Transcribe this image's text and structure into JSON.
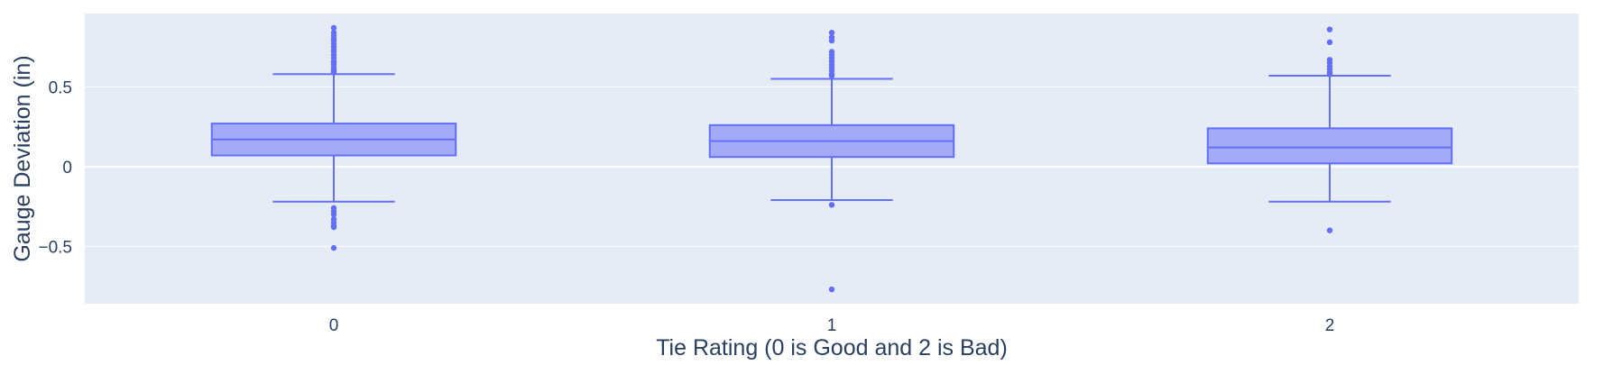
{
  "chart_data": {
    "type": "box",
    "title": "",
    "xlabel": "Tie Rating (0 is Good and 2 is Bad)",
    "ylabel": "Gauge Deviation (in)",
    "categories": [
      "0",
      "1",
      "2"
    ],
    "ylim": [
      -0.86,
      0.96
    ],
    "yticks": [
      {
        "value": 0.5,
        "label": "0.5"
      },
      {
        "value": 0,
        "label": "0"
      },
      {
        "value": -0.5,
        "label": "−0.5"
      }
    ],
    "grid": true,
    "legend": "none",
    "series": [
      {
        "boxes": [
          {
            "category": "0",
            "q1": 0.07,
            "median": 0.17,
            "q3": 0.27,
            "lower_fence": -0.22,
            "upper_fence": 0.58,
            "outliers": [
              0.87,
              0.84,
              0.82,
              0.8,
              0.79,
              0.77,
              0.75,
              0.73,
              0.72,
              0.7,
              0.68,
              0.66,
              0.65,
              0.64,
              0.62,
              0.61,
              0.6,
              0.59,
              -0.26,
              -0.28,
              -0.3,
              -0.33,
              -0.35,
              -0.37,
              -0.38,
              -0.51
            ]
          },
          {
            "category": "1",
            "q1": 0.06,
            "median": 0.16,
            "q3": 0.26,
            "lower_fence": -0.21,
            "upper_fence": 0.55,
            "outliers": [
              0.84,
              0.81,
              0.79,
              0.72,
              0.7,
              0.68,
              0.66,
              0.64,
              0.62,
              0.6,
              0.58,
              0.57,
              -0.24,
              -0.77
            ]
          },
          {
            "category": "2",
            "q1": 0.02,
            "median": 0.12,
            "q3": 0.24,
            "lower_fence": -0.22,
            "upper_fence": 0.57,
            "outliers": [
              0.86,
              0.78,
              0.67,
              0.65,
              0.63,
              0.61,
              0.59,
              0.58,
              -0.4
            ]
          }
        ]
      }
    ],
    "colors": {
      "plot_bg": "#e5ecf6",
      "grid": "#ffffff",
      "box_line": "#636efa",
      "box_fill": "#a4aaf8",
      "text": "#2a3f5f"
    }
  }
}
